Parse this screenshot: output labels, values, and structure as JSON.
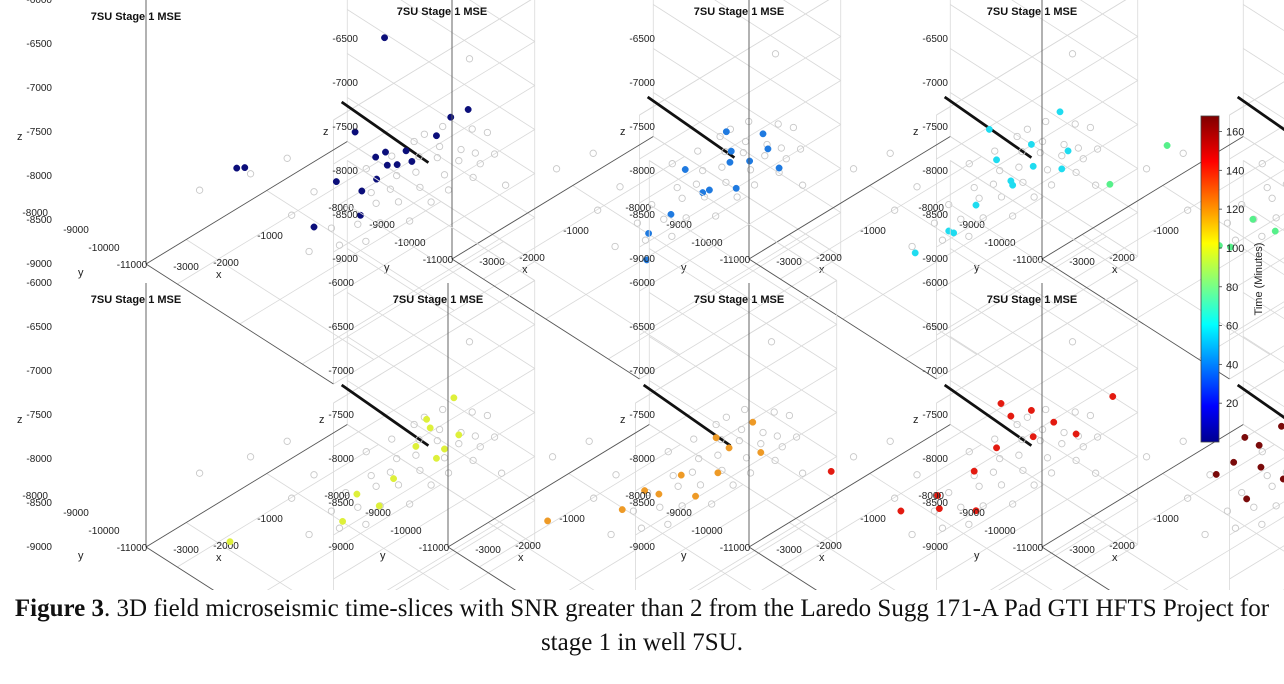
{
  "chart_data": {
    "type": "scatter",
    "subplot_type": "scatter3d",
    "x_ticks": [
      "-1000",
      "-2000",
      "-3000"
    ],
    "y_ticks": [
      "-9000",
      "-10000",
      "-11000"
    ],
    "z_ticks": [
      "-6000",
      "-6500",
      "-7000",
      "-7500",
      "-8000",
      "-8500",
      "-9000"
    ],
    "z_bottom_label": "-8000",
    "colorbar": {
      "label": "Time (Minutes)",
      "ticks": [
        "20",
        "40",
        "60",
        "80",
        "100",
        "120",
        "140",
        "160"
      ],
      "range": [
        0,
        168
      ],
      "colormap": "jet"
    },
    "panels": [
      {
        "title": "7SU Stage 1 MSE",
        "xlabel": "x",
        "ylabel": "y",
        "zlabel": "z",
        "color": "#0b0e7a",
        "points": [
          [
            -2400,
            -10900,
            -5950
          ],
          [
            -2800,
            -9050,
            -8050
          ],
          [
            -2700,
            -9050,
            -8100
          ],
          [
            -2300,
            -10300,
            -7350
          ],
          [
            -2200,
            -10500,
            -7600
          ],
          [
            -2000,
            -10400,
            -7700
          ],
          [
            -1900,
            -10300,
            -7950
          ],
          [
            -1750,
            -10500,
            -7900
          ],
          [
            -1600,
            -10700,
            -7600
          ],
          [
            -1500,
            -10800,
            -7400
          ],
          [
            -2100,
            -10150,
            -8200
          ],
          [
            -1800,
            -10000,
            -8300
          ],
          [
            -2500,
            -9900,
            -8500
          ],
          [
            -2000,
            -10000,
            -8600
          ],
          [
            -1400,
            -10950,
            -7300
          ],
          [
            -2300,
            -10000,
            -8050
          ],
          [
            -1700,
            -10200,
            -8100
          ],
          [
            -1900,
            -10600,
            -7650
          ]
        ]
      },
      {
        "title": "7SU Stage 1 MSE",
        "xlabel": "x",
        "ylabel": "y",
        "zlabel": "z",
        "color": "#1f7ae0",
        "points": [
          [
            -1800,
            -10700,
            -7500
          ],
          [
            -1500,
            -10900,
            -7600
          ],
          [
            -1700,
            -10650,
            -7800
          ],
          [
            -1400,
            -10850,
            -7850
          ],
          [
            -1600,
            -10500,
            -8050
          ],
          [
            -1900,
            -10450,
            -8250
          ],
          [
            -1700,
            -10300,
            -8400
          ],
          [
            -2100,
            -10200,
            -8500
          ],
          [
            -2300,
            -10100,
            -8650
          ],
          [
            -1600,
            -10600,
            -8300
          ],
          [
            -1300,
            -10900,
            -8100
          ],
          [
            -2400,
            -10200,
            -8850
          ],
          [
            -2000,
            -10300,
            -8000
          ],
          [
            -1550,
            -10750,
            -7950
          ]
        ]
      },
      {
        "title": "7SU Stage 1 MSE",
        "xlabel": "x",
        "ylabel": "y",
        "zlabel": "z",
        "color": "#1fdcf0",
        "points": [
          [
            -2300,
            -10800,
            -7150
          ],
          [
            -1500,
            -10900,
            -7350
          ],
          [
            -1700,
            -10700,
            -7700
          ],
          [
            -1400,
            -10900,
            -7850
          ],
          [
            -1600,
            -10600,
            -8050
          ],
          [
            -1900,
            -10400,
            -7900
          ],
          [
            -1700,
            -10400,
            -8300
          ],
          [
            -2000,
            -10200,
            -8450
          ],
          [
            -2300,
            -10150,
            -8600
          ],
          [
            -2600,
            -10000,
            -8750
          ],
          [
            -2200,
            -10100,
            -8700
          ],
          [
            -1400,
            -10800,
            -8100
          ],
          [
            -1800,
            -10500,
            -8150
          ]
        ]
      },
      {
        "title": "7SU Stage 1 MSE",
        "xlabel": "x",
        "ylabel": "y",
        "zlabel": "z",
        "color": "#56f08a",
        "points": [
          [
            -3200,
            -9200,
            -8000
          ],
          [
            -2800,
            -9600,
            -7600
          ],
          [
            -1700,
            -10800,
            -6900
          ],
          [
            -1600,
            -10700,
            -7500
          ],
          [
            -1500,
            -10850,
            -7700
          ],
          [
            -1400,
            -10800,
            -7950
          ],
          [
            -1700,
            -10600,
            -7900
          ],
          [
            -1900,
            -10400,
            -8050
          ],
          [
            -2200,
            -10200,
            -8500
          ],
          [
            -2000,
            -10300,
            -8700
          ],
          [
            -2400,
            -10100,
            -8750
          ],
          [
            -1600,
            -10500,
            -8250
          ],
          [
            -1800,
            -10500,
            -7650
          ],
          [
            -2500,
            -10050,
            -8700
          ]
        ]
      },
      {
        "title": "7SU Stage 1 MSE",
        "xlabel": "x",
        "ylabel": "y",
        "zlabel": "z",
        "color": "#def03a",
        "points": [
          [
            -1800,
            -10800,
            -7450
          ],
          [
            -1500,
            -10850,
            -7350
          ],
          [
            -1600,
            -10600,
            -7750
          ],
          [
            -1400,
            -10800,
            -7850
          ],
          [
            -1700,
            -10500,
            -7950
          ],
          [
            -1600,
            -10700,
            -8050
          ],
          [
            -2200,
            -10200,
            -8350
          ],
          [
            -2000,
            -10300,
            -8550
          ],
          [
            -2300,
            -10100,
            -8650
          ],
          [
            -1900,
            -10400,
            -8250
          ],
          [
            -3000,
            -9200,
            -8900
          ],
          [
            -1500,
            -10700,
            -8000
          ]
        ]
      },
      {
        "title": "7SU Stage 1 MSE",
        "xlabel": "x",
        "ylabel": "y",
        "zlabel": "z",
        "color": "#ee9a26",
        "points": [
          [
            -1800,
            -10600,
            -7750
          ],
          [
            -1500,
            -10800,
            -7650
          ],
          [
            -1600,
            -10550,
            -8000
          ],
          [
            -1700,
            -10500,
            -8250
          ],
          [
            -2000,
            -10300,
            -8200
          ],
          [
            -2200,
            -10200,
            -8350
          ],
          [
            -2500,
            -10000,
            -8450
          ],
          [
            -3000,
            -9450,
            -8550
          ],
          [
            -1400,
            -10800,
            -8050
          ],
          [
            -1900,
            -10400,
            -8450
          ],
          [
            -2300,
            -10100,
            -8300
          ]
        ]
      },
      {
        "title": "7SU Stage 1 MSE",
        "xlabel": "x",
        "ylabel": "y",
        "zlabel": "z",
        "color": "#e31a10",
        "points": [
          [
            -3100,
            -9300,
            -8000
          ],
          [
            -2000,
            -10600,
            -7250
          ],
          [
            -1700,
            -10700,
            -7450
          ],
          [
            -1000,
            -11100,
            -7500
          ],
          [
            -1500,
            -10800,
            -7650
          ],
          [
            -1300,
            -10900,
            -7850
          ],
          [
            -1600,
            -10600,
            -7850
          ],
          [
            -1900,
            -10400,
            -7900
          ],
          [
            -2100,
            -10300,
            -8100
          ],
          [
            -2400,
            -10100,
            -8300
          ],
          [
            -2700,
            -9900,
            -8400
          ],
          [
            -2300,
            -10000,
            -8550
          ],
          [
            -2000,
            -10200,
            -8650
          ],
          [
            -1800,
            -10500,
            -7550
          ]
        ]
      },
      {
        "title": "7SU Stage 1 MSE",
        "xlabel": "x",
        "ylabel": "y",
        "zlabel": "z",
        "color": "#7a0a0a",
        "points": [
          [
            -1400,
            -11000,
            -7150
          ],
          [
            -1300,
            -11050,
            -7450
          ],
          [
            -1700,
            -10650,
            -7550
          ],
          [
            -2000,
            -10400,
            -7600
          ],
          [
            -2200,
            -10300,
            -7750
          ],
          [
            -2400,
            -10150,
            -7900
          ],
          [
            -2100,
            -10200,
            -8100
          ],
          [
            -1900,
            -10300,
            -8300
          ],
          [
            -2200,
            -10100,
            -8450
          ],
          [
            -1700,
            -10400,
            -8400
          ],
          [
            -2500,
            -10000,
            -8050
          ],
          [
            -1600,
            -10600,
            -8150
          ],
          [
            -2300,
            -10200,
            -7650
          ],
          [
            -1800,
            -10500,
            -7800
          ]
        ]
      }
    ],
    "background_points": [
      [
        -1500,
        -11100,
        -6600
      ],
      [
        -2900,
        -9400,
        -7900
      ],
      [
        -2600,
        -9600,
        -7800
      ],
      [
        -1800,
        -10600,
        -7600
      ],
      [
        -1600,
        -10750,
        -7700
      ],
      [
        -1450,
        -10900,
        -7750
      ],
      [
        -1350,
        -11000,
        -7800
      ],
      [
        -1700,
        -10550,
        -7850
      ],
      [
        -1550,
        -10650,
        -7900
      ],
      [
        -1400,
        -10800,
        -7950
      ],
      [
        -1250,
        -10950,
        -8000
      ],
      [
        -1900,
        -10450,
        -8000
      ],
      [
        -1700,
        -10500,
        -8050
      ],
      [
        -1500,
        -10700,
        -8100
      ],
      [
        -1300,
        -10900,
        -8150
      ],
      [
        -2100,
        -10300,
        -8150
      ],
      [
        -1900,
        -10350,
        -8200
      ],
      [
        -1650,
        -10500,
        -8250
      ],
      [
        -1450,
        -10700,
        -8300
      ],
      [
        -2300,
        -10150,
        -8300
      ],
      [
        -2000,
        -10250,
        -8350
      ],
      [
        -1800,
        -10350,
        -8400
      ],
      [
        -1550,
        -10550,
        -8450
      ],
      [
        -2400,
        -10050,
        -8500
      ],
      [
        -2150,
        -10150,
        -8550
      ],
      [
        -1950,
        -10250,
        -8600
      ],
      [
        -1700,
        -10400,
        -8650
      ],
      [
        -2600,
        -9950,
        -8700
      ],
      [
        -2300,
        -10050,
        -8750
      ],
      [
        -2050,
        -10150,
        -8800
      ],
      [
        -1600,
        -10800,
        -7450
      ],
      [
        -1750,
        -10700,
        -7500
      ],
      [
        -1350,
        -10950,
        -7550
      ],
      [
        -1200,
        -11000,
        -7650
      ],
      [
        -1150,
        -11050,
        -7900
      ],
      [
        -2000,
        -10500,
        -7700
      ],
      [
        -2200,
        -10350,
        -7800
      ],
      [
        -3300,
        -9100,
        -8000
      ],
      [
        -2700,
        -9800,
        -8300
      ],
      [
        -2500,
        -9900,
        -8100
      ]
    ],
    "well_line": [
      [
        -2700,
        -10600,
        -6650
      ],
      [
        -1700,
        -10700,
        -7850
      ]
    ]
  },
  "caption": {
    "label": "Figure 3",
    "text": ". 3D field microseismic time-slices with SNR greater than 2 from the Laredo Sugg 171-A Pad GTI HFTS Project for stage 1 in well 7SU."
  }
}
